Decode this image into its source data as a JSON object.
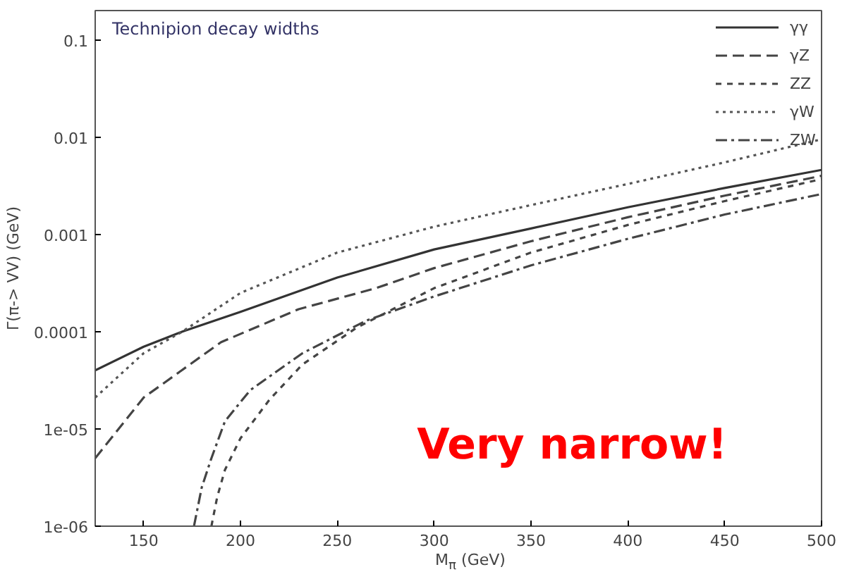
{
  "chart_data": {
    "type": "line",
    "title": "Technipion decay widths",
    "xlabel": "M$_{π}$ (GeV)",
    "ylabel": "Γ(π-> VV) (GeV)",
    "xlim": [
      125,
      500
    ],
    "xticks": [
      150,
      200,
      250,
      300,
      350,
      400,
      450,
      500
    ],
    "ylim": [
      1e-06,
      0.2
    ],
    "yticks": [
      {
        "value": 1e-06,
        "label": "1e-06"
      },
      {
        "value": 1e-05,
        "label": "1e-05"
      },
      0.0001,
      0.001,
      0.01,
      0.1
    ],
    "log": "y",
    "grid": false,
    "legend": "top right",
    "marker": "none",
    "annotations": [
      "Very narrow!"
    ],
    "series": [
      {
        "name": "γγ",
        "color": "#333333",
        "line_style": "solid",
        "x": [
          125,
          150,
          170,
          200,
          250,
          300,
          350,
          400,
          450,
          500
        ],
        "values": [
          4e-05,
          7e-05,
          0.0001,
          0.00016,
          0.00036,
          0.0007,
          0.00115,
          0.0019,
          0.003,
          0.0046
        ]
      },
      {
        "name": "γZ",
        "color": "#444444",
        "line_style": "dashed",
        "x": [
          125,
          150,
          190,
          230,
          270,
          300,
          350,
          400,
          450,
          500
        ],
        "values": [
          5e-06,
          2.1e-05,
          7.8e-05,
          0.00017,
          0.00028,
          0.00045,
          0.00085,
          0.0015,
          0.0025,
          0.004
        ]
      },
      {
        "name": "ZZ",
        "color": "#444444",
        "line_style": "shortdash",
        "x": [
          185,
          188,
          192,
          200,
          215,
          232,
          260,
          300,
          350,
          400,
          450,
          500
        ],
        "values": [
          1e-06,
          2e-06,
          3.8e-06,
          8e-06,
          2e-05,
          4.6e-05,
          0.00011,
          0.00028,
          0.00065,
          0.00125,
          0.0022,
          0.0037
        ]
      },
      {
        "name": "γW",
        "color": "#555555",
        "line_style": "dotted",
        "x": [
          125,
          150,
          170,
          200,
          250,
          300,
          350,
          400,
          450,
          500
        ],
        "values": [
          2.1e-05,
          6e-05,
          0.0001,
          0.00025,
          0.00065,
          0.0012,
          0.002,
          0.0033,
          0.0055,
          0.0095
        ]
      },
      {
        "name": "ZW",
        "color": "#444444",
        "line_style": "dashdot",
        "x": [
          176,
          180,
          185,
          192,
          205,
          232,
          265,
          300,
          350,
          400,
          450,
          500
        ],
        "values": [
          1e-06,
          2.5e-06,
          5e-06,
          1.2e-05,
          2.5e-05,
          6e-05,
          0.00013,
          0.00023,
          0.00048,
          0.0009,
          0.0016,
          0.0026
        ]
      }
    ]
  }
}
